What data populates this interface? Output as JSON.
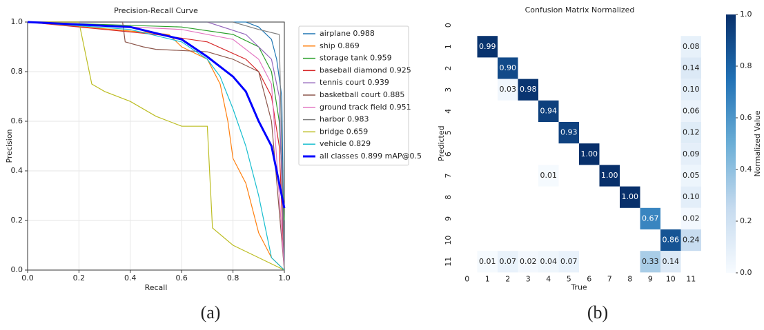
{
  "chart_data": [
    {
      "type": "line",
      "title": "Precision-Recall Curve",
      "xlabel": "Recall",
      "ylabel": "Precision",
      "caption": "(a)",
      "xlim": [
        0,
        1
      ],
      "ylim": [
        0,
        1
      ],
      "xticks": [
        {
          "value": 0,
          "label": "0.0"
        },
        0.2,
        0.4,
        0.6,
        0.8,
        {
          "value": 1,
          "label": "1.0"
        }
      ],
      "yticks": [
        {
          "value": 0,
          "label": "0.0"
        },
        0.2,
        0.4,
        0.6,
        0.8,
        {
          "value": 1,
          "label": "1.0"
        }
      ],
      "grid": true,
      "legend": "right",
      "series": [
        {
          "name": "airplane 0.988",
          "color": "#1f77b4",
          "x": [
            0,
            0.85,
            0.9,
            0.95,
            0.97,
            0.99,
            1.0
          ],
          "values": [
            1,
            1,
            0.98,
            0.93,
            0.85,
            0.7,
            0
          ]
        },
        {
          "name": "ship 0.869",
          "color": "#ff7f0e",
          "x": [
            0,
            0.55,
            0.6,
            0.7,
            0.75,
            0.78,
            0.8,
            0.85,
            0.9,
            0.95,
            1.0
          ],
          "values": [
            1,
            0.95,
            0.9,
            0.85,
            0.75,
            0.6,
            0.45,
            0.35,
            0.15,
            0.05,
            0
          ]
        },
        {
          "name": "storage tank 0.959",
          "color": "#2ca02c",
          "x": [
            0,
            0.6,
            0.8,
            0.9,
            0.95,
            0.98,
            1.0
          ],
          "values": [
            1,
            0.98,
            0.95,
            0.9,
            0.8,
            0.6,
            0.2
          ]
        },
        {
          "name": "baseball diamond 0.925",
          "color": "#d62728",
          "x": [
            0,
            0.5,
            0.7,
            0.85,
            0.9,
            0.95,
            0.98,
            1.0
          ],
          "values": [
            1,
            0.95,
            0.92,
            0.85,
            0.8,
            0.7,
            0.5,
            0
          ]
        },
        {
          "name": "tennis court 0.939",
          "color": "#9467bd",
          "x": [
            0,
            0.7,
            0.85,
            0.9,
            0.95,
            0.98,
            1.0
          ],
          "values": [
            1,
            1,
            0.95,
            0.9,
            0.85,
            0.7,
            0
          ]
        },
        {
          "name": "basketball court 0.885",
          "color": "#8c564b",
          "x": [
            0,
            0.37,
            0.38,
            0.45,
            0.5,
            0.7,
            0.8,
            0.9,
            0.95,
            1.0
          ],
          "values": [
            1,
            1,
            0.92,
            0.9,
            0.89,
            0.88,
            0.85,
            0.8,
            0.6,
            0
          ]
        },
        {
          "name": "ground track field 0.951",
          "color": "#e377c2",
          "x": [
            0,
            0.6,
            0.8,
            0.9,
            0.95,
            1.0
          ],
          "values": [
            1,
            0.97,
            0.93,
            0.85,
            0.75,
            0
          ]
        },
        {
          "name": "harbor 0.983",
          "color": "#7f7f7f",
          "x": [
            0,
            0.8,
            0.9,
            0.98,
            1.0
          ],
          "values": [
            1,
            1,
            0.97,
            0.95,
            0
          ]
        },
        {
          "name": "bridge 0.659",
          "color": "#bcbd22",
          "x": [
            0,
            0.1,
            0.2,
            0.25,
            0.3,
            0.4,
            0.5,
            0.55,
            0.6,
            0.7,
            0.72,
            0.8,
            0.9,
            1.0
          ],
          "values": [
            1,
            1,
            1,
            0.75,
            0.72,
            0.68,
            0.62,
            0.6,
            0.58,
            0.58,
            0.17,
            0.1,
            0.05,
            0
          ]
        },
        {
          "name": "vehicle 0.829",
          "color": "#17becf",
          "x": [
            0,
            0.4,
            0.6,
            0.7,
            0.75,
            0.8,
            0.85,
            0.9,
            0.95,
            1.0
          ],
          "values": [
            1,
            0.97,
            0.92,
            0.85,
            0.78,
            0.65,
            0.5,
            0.3,
            0.05,
            0
          ]
        },
        {
          "name": "all classes 0.899 mAP@0.5",
          "color": "#0000ff",
          "line_width": 3,
          "x": [
            0,
            0.4,
            0.6,
            0.7,
            0.8,
            0.85,
            0.9,
            0.95,
            0.98,
            1.0
          ],
          "values": [
            1,
            0.98,
            0.93,
            0.86,
            0.78,
            0.72,
            0.6,
            0.5,
            0.35,
            0.25
          ]
        }
      ]
    },
    {
      "type": "heatmap",
      "title": "Confusion Matrix Normalized",
      "xlabel": "True",
      "ylabel": "Predicted",
      "caption": "(b)",
      "colorbar_label": "Normalized Value",
      "x_categories": [
        "0",
        "1",
        "2",
        "3",
        "4",
        "5",
        "6",
        "7",
        "8",
        "9",
        "10",
        "11"
      ],
      "y_categories": [
        "0",
        "1",
        "2",
        "3",
        "4",
        "5",
        "6",
        "7",
        "8",
        "9",
        "10",
        "11"
      ],
      "cmap": [
        "#f7fbff",
        "#c6dbef",
        "#6baed6",
        "#2171b5",
        "#08306b"
      ],
      "clim": [
        0,
        1
      ],
      "cticks": [
        {
          "value": 0,
          "label": "0.0"
        },
        0.2,
        0.4,
        0.6,
        0.8,
        {
          "value": 1,
          "label": "1.0"
        }
      ],
      "values": [
        [
          null,
          null,
          null,
          null,
          null,
          null,
          null,
          null,
          null,
          null,
          null,
          null
        ],
        [
          null,
          0.99,
          null,
          null,
          null,
          null,
          null,
          null,
          null,
          null,
          null,
          0.08
        ],
        [
          null,
          null,
          0.9,
          null,
          null,
          null,
          null,
          null,
          null,
          null,
          null,
          0.14
        ],
        [
          null,
          null,
          0.03,
          0.98,
          null,
          null,
          null,
          null,
          null,
          null,
          null,
          0.1
        ],
        [
          null,
          null,
          null,
          null,
          0.94,
          null,
          null,
          null,
          null,
          null,
          null,
          0.06
        ],
        [
          null,
          null,
          null,
          null,
          null,
          0.93,
          null,
          null,
          null,
          null,
          null,
          0.12
        ],
        [
          null,
          null,
          null,
          null,
          null,
          null,
          1,
          null,
          null,
          null,
          null,
          0.09
        ],
        [
          null,
          null,
          null,
          null,
          0.01,
          null,
          null,
          1,
          null,
          null,
          null,
          0.05
        ],
        [
          null,
          null,
          null,
          null,
          null,
          null,
          null,
          null,
          1,
          null,
          null,
          0.1
        ],
        [
          null,
          null,
          null,
          null,
          null,
          null,
          null,
          null,
          null,
          0.67,
          null,
          0.02
        ],
        [
          null,
          null,
          null,
          null,
          null,
          null,
          null,
          null,
          null,
          null,
          0.86,
          0.24
        ],
        [
          null,
          0.01,
          0.07,
          0.02,
          0.04,
          0.07,
          null,
          null,
          null,
          0.33,
          0.14,
          null
        ]
      ],
      "value_labels": [
        [
          null,
          null,
          null,
          null,
          null,
          null,
          null,
          null,
          null,
          null,
          null,
          null
        ],
        [
          null,
          "0.99",
          null,
          null,
          null,
          null,
          null,
          null,
          null,
          null,
          null,
          "0.08"
        ],
        [
          null,
          null,
          "0.90",
          null,
          null,
          null,
          null,
          null,
          null,
          null,
          null,
          "0.14"
        ],
        [
          null,
          null,
          "0.03",
          "0.98",
          null,
          null,
          null,
          null,
          null,
          null,
          null,
          "0.10"
        ],
        [
          null,
          null,
          null,
          null,
          "0.94",
          null,
          null,
          null,
          null,
          null,
          null,
          "0.06"
        ],
        [
          null,
          null,
          null,
          null,
          null,
          "0.93",
          null,
          null,
          null,
          null,
          null,
          "0.12"
        ],
        [
          null,
          null,
          null,
          null,
          null,
          null,
          "1.00",
          null,
          null,
          null,
          null,
          "0.09"
        ],
        [
          null,
          null,
          null,
          null,
          "0.01",
          null,
          null,
          "1.00",
          null,
          null,
          null,
          "0.05"
        ],
        [
          null,
          null,
          null,
          null,
          null,
          null,
          null,
          null,
          "1.00",
          null,
          null,
          "0.10"
        ],
        [
          null,
          null,
          null,
          null,
          null,
          null,
          null,
          null,
          null,
          "0.67",
          null,
          "0.02"
        ],
        [
          null,
          null,
          null,
          null,
          null,
          null,
          null,
          null,
          null,
          null,
          "0.86",
          "0.24"
        ],
        [
          null,
          "0.01",
          "0.07",
          "0.02",
          "0.04",
          "0.07",
          null,
          null,
          null,
          "0.33",
          "0.14",
          null
        ]
      ]
    }
  ]
}
